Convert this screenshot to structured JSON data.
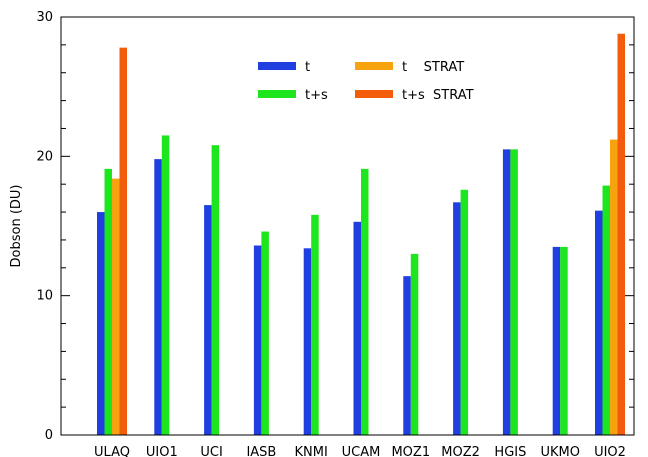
{
  "chart_data": {
    "type": "bar",
    "title": "",
    "xlabel": "",
    "ylabel": "Dobson (DU)",
    "ylim": [
      0,
      30
    ],
    "yticks": [
      0,
      10,
      20,
      30
    ],
    "grid": false,
    "legend_position": "top-center",
    "categories": [
      "ULAQ",
      "UIO1",
      "UCI",
      "IASB",
      "KNMI",
      "UCAM",
      "MOZ1",
      "MOZ2",
      "HGIS",
      "UKMO",
      "UIO2"
    ],
    "series": [
      {
        "name": "t",
        "color": "#1f3fe0",
        "values": [
          16.0,
          19.8,
          16.5,
          13.6,
          13.4,
          15.3,
          11.4,
          16.7,
          20.5,
          13.5,
          16.1
        ]
      },
      {
        "name": "t+s",
        "color": "#1ee61e",
        "values": [
          19.1,
          21.5,
          20.8,
          14.6,
          15.8,
          19.1,
          13.0,
          17.6,
          20.5,
          13.5,
          17.9
        ]
      },
      {
        "name": "t    STRAT",
        "color": "#f7a20f",
        "values": [
          18.4,
          null,
          null,
          null,
          null,
          null,
          null,
          null,
          null,
          null,
          21.2
        ]
      },
      {
        "name": "t+s  STRAT",
        "color": "#f25c0a",
        "values": [
          27.8,
          null,
          null,
          null,
          null,
          null,
          null,
          null,
          null,
          null,
          28.8
        ]
      }
    ]
  }
}
